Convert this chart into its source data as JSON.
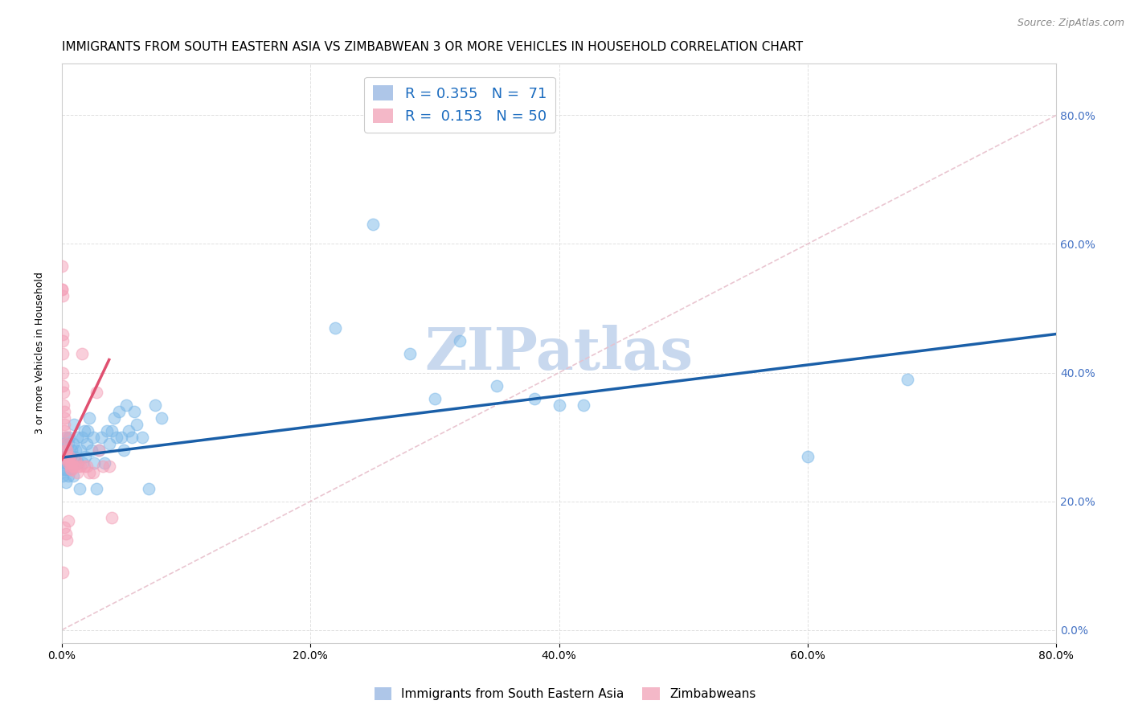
{
  "title": "IMMIGRANTS FROM SOUTH EASTERN ASIA VS ZIMBABWEAN 3 OR MORE VEHICLES IN HOUSEHOLD CORRELATION CHART",
  "source": "Source: ZipAtlas.com",
  "ylabel": "3 or more Vehicles in Household",
  "xticklabels": [
    "0.0%",
    "20.0%",
    "40.0%",
    "60.0%",
    "80.0%"
  ],
  "yticklabels_left": [
    "",
    "",
    "",
    "",
    ""
  ],
  "yticklabels_right": [
    "0.0%",
    "20.0%",
    "40.0%",
    "60.0%",
    "80.0%"
  ],
  "xlim": [
    0,
    0.8
  ],
  "ylim": [
    -0.02,
    0.88
  ],
  "legend_entries": [
    {
      "label": "R = 0.355   N =  71",
      "color": "#aec6e8"
    },
    {
      "label": "R =  0.153   N = 50",
      "color": "#f4b8c8"
    }
  ],
  "bottom_legend": [
    "Immigrants from South Eastern Asia",
    "Zimbabweans"
  ],
  "blue_color": "#7bb8e8",
  "pink_color": "#f4a0b8",
  "blue_line_color": "#1a5fa8",
  "pink_line_color": "#e05070",
  "diag_line_color": "#e8c0cc",
  "watermark": "ZIPatlas",
  "blue_scatter_x": [
    0.001,
    0.001,
    0.002,
    0.002,
    0.002,
    0.003,
    0.003,
    0.003,
    0.004,
    0.004,
    0.004,
    0.005,
    0.005,
    0.005,
    0.006,
    0.006,
    0.007,
    0.007,
    0.008,
    0.008,
    0.009,
    0.009,
    0.01,
    0.01,
    0.011,
    0.012,
    0.013,
    0.014,
    0.015,
    0.016,
    0.017,
    0.018,
    0.019,
    0.02,
    0.021,
    0.022,
    0.024,
    0.025,
    0.026,
    0.028,
    0.03,
    0.032,
    0.034,
    0.036,
    0.038,
    0.04,
    0.042,
    0.044,
    0.046,
    0.048,
    0.05,
    0.052,
    0.054,
    0.056,
    0.058,
    0.06,
    0.065,
    0.07,
    0.075,
    0.08,
    0.22,
    0.25,
    0.28,
    0.3,
    0.32,
    0.35,
    0.38,
    0.4,
    0.42,
    0.6,
    0.68
  ],
  "blue_scatter_y": [
    0.27,
    0.24,
    0.26,
    0.25,
    0.29,
    0.23,
    0.27,
    0.3,
    0.26,
    0.28,
    0.25,
    0.27,
    0.24,
    0.29,
    0.26,
    0.3,
    0.27,
    0.25,
    0.28,
    0.26,
    0.24,
    0.29,
    0.27,
    0.32,
    0.28,
    0.3,
    0.26,
    0.22,
    0.28,
    0.3,
    0.26,
    0.31,
    0.27,
    0.29,
    0.31,
    0.33,
    0.28,
    0.3,
    0.26,
    0.22,
    0.28,
    0.3,
    0.26,
    0.31,
    0.29,
    0.31,
    0.33,
    0.3,
    0.34,
    0.3,
    0.28,
    0.35,
    0.31,
    0.3,
    0.34,
    0.32,
    0.3,
    0.22,
    0.35,
    0.33,
    0.47,
    0.63,
    0.43,
    0.36,
    0.45,
    0.38,
    0.36,
    0.35,
    0.35,
    0.27,
    0.39
  ],
  "pink_scatter_x": [
    0.0002,
    0.0002,
    0.0003,
    0.0005,
    0.0005,
    0.0008,
    0.001,
    0.001,
    0.001,
    0.0015,
    0.0015,
    0.002,
    0.002,
    0.002,
    0.002,
    0.003,
    0.003,
    0.003,
    0.004,
    0.004,
    0.004,
    0.005,
    0.005,
    0.006,
    0.006,
    0.007,
    0.007,
    0.008,
    0.008,
    0.009,
    0.01,
    0.011,
    0.012,
    0.013,
    0.015,
    0.016,
    0.018,
    0.02,
    0.022,
    0.025,
    0.028,
    0.03,
    0.033,
    0.038,
    0.04,
    0.001,
    0.002,
    0.003,
    0.004,
    0.005
  ],
  "pink_scatter_y": [
    0.565,
    0.53,
    0.53,
    0.52,
    0.46,
    0.45,
    0.43,
    0.4,
    0.38,
    0.37,
    0.35,
    0.34,
    0.33,
    0.32,
    0.31,
    0.3,
    0.29,
    0.28,
    0.28,
    0.27,
    0.265,
    0.265,
    0.26,
    0.265,
    0.27,
    0.255,
    0.25,
    0.26,
    0.25,
    0.255,
    0.255,
    0.265,
    0.245,
    0.255,
    0.255,
    0.43,
    0.255,
    0.255,
    0.245,
    0.245,
    0.37,
    0.28,
    0.255,
    0.255,
    0.175,
    0.09,
    0.16,
    0.15,
    0.14,
    0.17
  ],
  "title_fontsize": 11,
  "axis_label_fontsize": 9,
  "tick_fontsize": 10,
  "legend_fontsize": 13,
  "watermark_fontsize": 52,
  "watermark_color": "#c8d8ee",
  "background_color": "#ffffff",
  "grid_color": "#dddddd"
}
